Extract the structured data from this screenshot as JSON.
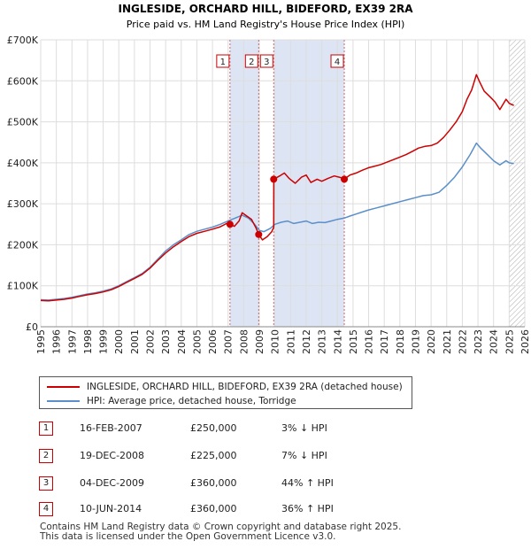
{
  "title": "INGLESIDE, ORCHARD HILL, BIDEFORD, EX39 2RA",
  "subtitle": "Price paid vs. HM Land Registry's House Price Index (HPI)",
  "colors": {
    "property": "#cc0000",
    "hpi": "#5b8fc9",
    "shade": "#dde5f5",
    "grid": "#dddddd",
    "marker_line": "#cc6666"
  },
  "chart_data": {
    "type": "line",
    "title": "INGLESIDE, ORCHARD HILL, BIDEFORD, EX39 2RA",
    "subtitle": "Price paid vs. HM Land Registry's House Price Index (HPI)",
    "xlim": [
      1995,
      2026
    ],
    "ylim": [
      0,
      700000
    ],
    "y_ticks": [
      {
        "value": 0,
        "label": "£0"
      },
      {
        "value": 100000,
        "label": "£100K"
      },
      {
        "value": 200000,
        "label": "£200K"
      },
      {
        "value": 300000,
        "label": "£300K"
      },
      {
        "value": 400000,
        "label": "£400K"
      },
      {
        "value": 500000,
        "label": "£500K"
      },
      {
        "value": 600000,
        "label": "£600K"
      },
      {
        "value": 700000,
        "label": "£700K"
      }
    ],
    "x_ticks": [
      "1995",
      "1996",
      "1997",
      "1998",
      "1999",
      "2000",
      "2001",
      "2002",
      "2003",
      "2004",
      "2005",
      "2006",
      "2007",
      "2008",
      "2009",
      "2010",
      "2011",
      "2012",
      "2013",
      "2014",
      "2015",
      "2016",
      "2017",
      "2018",
      "2019",
      "2020",
      "2021",
      "2022",
      "2023",
      "2024",
      "2025",
      "2026"
    ],
    "shaded_ranges": [
      [
        2007.12,
        2008.96
      ],
      [
        2009.92,
        2014.44
      ]
    ],
    "hatched_from": 2025.0,
    "series": [
      {
        "name": "INGLESIDE, ORCHARD HILL, BIDEFORD, EX39 2RA (detached house)",
        "color": "#cc0000",
        "points": [
          [
            1995.0,
            64000
          ],
          [
            1995.5,
            63000
          ],
          [
            1996.0,
            65000
          ],
          [
            1996.5,
            67000
          ],
          [
            1997.0,
            70000
          ],
          [
            1997.5,
            74000
          ],
          [
            1998.0,
            78000
          ],
          [
            1998.5,
            81000
          ],
          [
            1999.0,
            85000
          ],
          [
            1999.5,
            90000
          ],
          [
            2000.0,
            98000
          ],
          [
            2000.5,
            108000
          ],
          [
            2001.0,
            118000
          ],
          [
            2001.5,
            128000
          ],
          [
            2002.0,
            143000
          ],
          [
            2002.5,
            162000
          ],
          [
            2003.0,
            180000
          ],
          [
            2003.5,
            195000
          ],
          [
            2004.0,
            208000
          ],
          [
            2004.5,
            220000
          ],
          [
            2005.0,
            228000
          ],
          [
            2005.5,
            233000
          ],
          [
            2006.0,
            238000
          ],
          [
            2006.5,
            244000
          ],
          [
            2006.9,
            252000
          ],
          [
            2007.12,
            250000
          ],
          [
            2007.4,
            245000
          ],
          [
            2007.7,
            258000
          ],
          [
            2007.9,
            278000
          ],
          [
            2008.2,
            270000
          ],
          [
            2008.5,
            262000
          ],
          [
            2008.8,
            240000
          ],
          [
            2008.96,
            225000
          ],
          [
            2009.2,
            212000
          ],
          [
            2009.5,
            220000
          ],
          [
            2009.8,
            232000
          ],
          [
            2009.92,
            243000
          ],
          [
            2009.93,
            360000
          ],
          [
            2010.3,
            368000
          ],
          [
            2010.6,
            375000
          ],
          [
            2010.9,
            362000
          ],
          [
            2011.3,
            350000
          ],
          [
            2011.7,
            365000
          ],
          [
            2012.0,
            370000
          ],
          [
            2012.3,
            352000
          ],
          [
            2012.7,
            360000
          ],
          [
            2013.0,
            355000
          ],
          [
            2013.4,
            362000
          ],
          [
            2013.8,
            368000
          ],
          [
            2014.2,
            364000
          ],
          [
            2014.44,
            360000
          ],
          [
            2014.8,
            370000
          ],
          [
            2015.2,
            375000
          ],
          [
            2015.6,
            382000
          ],
          [
            2016.0,
            388000
          ],
          [
            2016.4,
            392000
          ],
          [
            2016.8,
            396000
          ],
          [
            2017.2,
            402000
          ],
          [
            2017.6,
            408000
          ],
          [
            2018.0,
            414000
          ],
          [
            2018.4,
            420000
          ],
          [
            2018.8,
            428000
          ],
          [
            2019.2,
            436000
          ],
          [
            2019.6,
            440000
          ],
          [
            2020.0,
            442000
          ],
          [
            2020.4,
            448000
          ],
          [
            2020.8,
            462000
          ],
          [
            2021.2,
            480000
          ],
          [
            2021.6,
            500000
          ],
          [
            2022.0,
            525000
          ],
          [
            2022.3,
            555000
          ],
          [
            2022.6,
            578000
          ],
          [
            2022.9,
            615000
          ],
          [
            2023.1,
            598000
          ],
          [
            2023.4,
            575000
          ],
          [
            2023.8,
            560000
          ],
          [
            2024.1,
            548000
          ],
          [
            2024.4,
            530000
          ],
          [
            2024.8,
            555000
          ],
          [
            2025.0,
            545000
          ],
          [
            2025.3,
            540000
          ]
        ]
      },
      {
        "name": "HPI: Average price, detached house, Torridge",
        "color": "#5b8fc9",
        "points": [
          [
            1995.0,
            66000
          ],
          [
            1995.5,
            65000
          ],
          [
            1996.0,
            67000
          ],
          [
            1996.5,
            69000
          ],
          [
            1997.0,
            72000
          ],
          [
            1997.5,
            76000
          ],
          [
            1998.0,
            80000
          ],
          [
            1998.5,
            83000
          ],
          [
            1999.0,
            87000
          ],
          [
            1999.5,
            92000
          ],
          [
            2000.0,
            100000
          ],
          [
            2000.5,
            110000
          ],
          [
            2001.0,
            120000
          ],
          [
            2001.5,
            130000
          ],
          [
            2002.0,
            145000
          ],
          [
            2002.5,
            165000
          ],
          [
            2003.0,
            185000
          ],
          [
            2003.5,
            200000
          ],
          [
            2004.0,
            212000
          ],
          [
            2004.5,
            225000
          ],
          [
            2005.0,
            233000
          ],
          [
            2005.5,
            238000
          ],
          [
            2006.0,
            243000
          ],
          [
            2006.5,
            250000
          ],
          [
            2007.0,
            258000
          ],
          [
            2007.5,
            266000
          ],
          [
            2007.9,
            272000
          ],
          [
            2008.3,
            265000
          ],
          [
            2008.7,
            250000
          ],
          [
            2009.0,
            235000
          ],
          [
            2009.3,
            232000
          ],
          [
            2009.7,
            240000
          ],
          [
            2010.0,
            250000
          ],
          [
            2010.4,
            255000
          ],
          [
            2010.8,
            258000
          ],
          [
            2011.2,
            252000
          ],
          [
            2011.6,
            255000
          ],
          [
            2012.0,
            258000
          ],
          [
            2012.4,
            252000
          ],
          [
            2012.8,
            255000
          ],
          [
            2013.2,
            254000
          ],
          [
            2013.6,
            258000
          ],
          [
            2014.0,
            262000
          ],
          [
            2014.44,
            265000
          ],
          [
            2014.8,
            270000
          ],
          [
            2015.2,
            275000
          ],
          [
            2015.6,
            280000
          ],
          [
            2016.0,
            285000
          ],
          [
            2016.5,
            290000
          ],
          [
            2017.0,
            295000
          ],
          [
            2017.5,
            300000
          ],
          [
            2018.0,
            305000
          ],
          [
            2018.5,
            310000
          ],
          [
            2019.0,
            315000
          ],
          [
            2019.5,
            320000
          ],
          [
            2020.0,
            322000
          ],
          [
            2020.5,
            328000
          ],
          [
            2021.0,
            345000
          ],
          [
            2021.5,
            365000
          ],
          [
            2022.0,
            390000
          ],
          [
            2022.5,
            420000
          ],
          [
            2022.9,
            448000
          ],
          [
            2023.2,
            435000
          ],
          [
            2023.6,
            420000
          ],
          [
            2024.0,
            405000
          ],
          [
            2024.4,
            395000
          ],
          [
            2024.8,
            405000
          ],
          [
            2025.0,
            400000
          ],
          [
            2025.3,
            398000
          ]
        ]
      }
    ],
    "sales": [
      {
        "id": "1",
        "x": 2007.12,
        "price": 250000,
        "date": "16-FEB-2007",
        "price_label": "£250,000",
        "hpi_label": "3% ↓ HPI"
      },
      {
        "id": "2",
        "x": 2008.96,
        "price": 225000,
        "date": "19-DEC-2008",
        "price_label": "£225,000",
        "hpi_label": "7% ↓ HPI"
      },
      {
        "id": "3",
        "x": 2009.92,
        "price": 360000,
        "date": "04-DEC-2009",
        "price_label": "£360,000",
        "hpi_label": "44% ↑ HPI"
      },
      {
        "id": "4",
        "x": 2014.44,
        "price": 360000,
        "date": "10-JUN-2014",
        "price_label": "£360,000",
        "hpi_label": "36% ↑ HPI"
      }
    ]
  },
  "legend": {
    "property_label": "INGLESIDE, ORCHARD HILL, BIDEFORD, EX39 2RA (detached house)",
    "hpi_label": "HPI: Average price, detached house, Torridge"
  },
  "footer": {
    "line1": "Contains HM Land Registry data © Crown copyright and database right 2025.",
    "line2": "This data is licensed under the Open Government Licence v3.0."
  }
}
